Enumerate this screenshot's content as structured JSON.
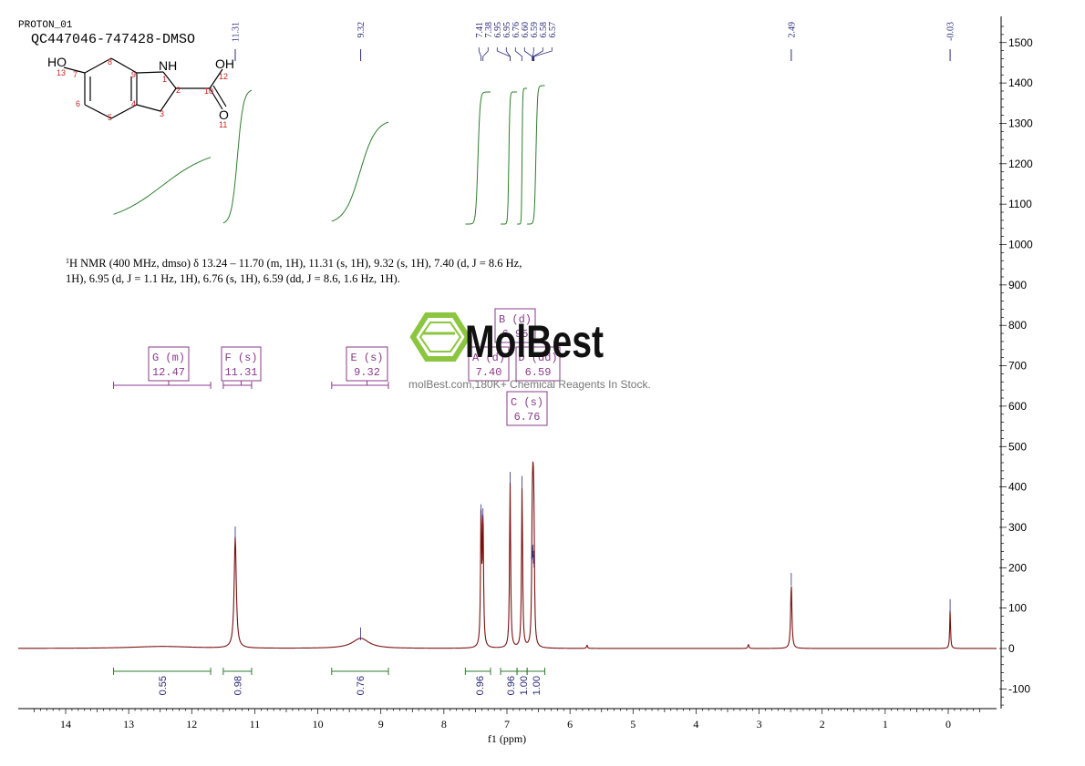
{
  "header": {
    "experiment": "PROTON_01",
    "sample": "QC447046-747428-DMSO"
  },
  "watermark": {
    "brand": "MolBest",
    "tagline": "molBest.com,180K+ Chemical Reagents In Stock."
  },
  "description": {
    "line1_sup": "1",
    "line1": "H NMR (400 MHz, dmso) δ 13.24 – 11.70 (m, 1H), 11.31 (s, 1H), 9.32 (s, 1H), 7.40 (d, J = 8.6 Hz,",
    "line2": "1H), 6.95 (d, J = 1.1 Hz, 1H), 6.76 (s, 1H), 6.59 (dd, J = 8.6, 1.6 Hz, 1H)."
  },
  "molecule": {
    "atoms": [
      "HO",
      "NH",
      "OH",
      "O"
    ],
    "numbers": [
      "13",
      "7",
      "8",
      "9",
      "1",
      "2",
      "10",
      "12",
      "6",
      "5",
      "4",
      "3",
      "11"
    ]
  },
  "colors": {
    "spectrum": "#7b1010",
    "integral": "#2e7d2e",
    "multiplet": "#8a3a8a",
    "peak_label": "#2a2a7a",
    "axis": "#000000",
    "atom_number": "#cc2222"
  },
  "chart_data": {
    "type": "line",
    "xlabel": "f1 (ppm)",
    "x_ticks": [
      "14",
      "13",
      "12",
      "11",
      "10",
      "9",
      "8",
      "7",
      "6",
      "5",
      "4",
      "3",
      "2",
      "1",
      "0"
    ],
    "y_ticks": [
      "1500",
      "1400",
      "1300",
      "1200",
      "1100",
      "1000",
      "900",
      "800",
      "700",
      "600",
      "500",
      "400",
      "300",
      "200",
      "100",
      "0",
      "-100"
    ],
    "xlim": [
      14.8,
      -0.75
    ],
    "ylim": [
      -145,
      1560
    ],
    "x_reversed": true,
    "peaks": [
      {
        "ppm": 12.47,
        "height": 5,
        "width": 0.6
      },
      {
        "ppm": 11.31,
        "height": 275,
        "width": 0.02
      },
      {
        "ppm": 9.32,
        "height": 25,
        "width": 0.16
      },
      {
        "ppm": 7.41,
        "height": 330,
        "width": 0.01
      },
      {
        "ppm": 7.38,
        "height": 320,
        "width": 0.01
      },
      {
        "ppm": 6.95,
        "height": 410,
        "width": 0.01
      },
      {
        "ppm": 6.76,
        "height": 400,
        "width": 0.01
      },
      {
        "ppm": 6.6,
        "height": 225,
        "width": 0.009
      },
      {
        "ppm": 6.59,
        "height": 230,
        "width": 0.009
      },
      {
        "ppm": 6.58,
        "height": 215,
        "width": 0.009
      },
      {
        "ppm": 6.57,
        "height": 205,
        "width": 0.009
      },
      {
        "ppm": 5.73,
        "height": 8,
        "width": 0.01
      },
      {
        "ppm": 3.17,
        "height": 10,
        "width": 0.01
      },
      {
        "ppm": 2.49,
        "height": 160,
        "width": 0.012
      },
      {
        "ppm": -0.03,
        "height": 95,
        "width": 0.008
      }
    ],
    "peak_labels": [
      {
        "ppm": 11.31,
        "text": "11.31"
      },
      {
        "ppm": 9.32,
        "text": "9.32"
      },
      {
        "ppm": 7.41,
        "text": "7.41"
      },
      {
        "ppm": 7.38,
        "text": "7.38"
      },
      {
        "ppm": 6.95,
        "text": "6.95"
      },
      {
        "ppm": 6.95,
        "text": "6.95"
      },
      {
        "ppm": 6.76,
        "text": "6.76"
      },
      {
        "ppm": 6.6,
        "text": "6.60"
      },
      {
        "ppm": 6.59,
        "text": "6.59"
      },
      {
        "ppm": 6.58,
        "text": "6.58"
      },
      {
        "ppm": 6.57,
        "text": "6.57"
      },
      {
        "ppm": 2.49,
        "text": "2.49"
      },
      {
        "ppm": -0.03,
        "text": "-0.03"
      }
    ],
    "integrals": [
      {
        "from": 13.24,
        "to": 11.7,
        "value": "0.55"
      },
      {
        "from": 11.5,
        "to": 11.05,
        "value": "0.98"
      },
      {
        "from": 9.78,
        "to": 8.88,
        "value": "0.76"
      },
      {
        "from": 7.66,
        "to": 7.26,
        "value": "0.96"
      },
      {
        "from": 7.1,
        "to": 6.84,
        "value": "0.96"
      },
      {
        "from": 6.84,
        "to": 6.68,
        "value": "1.00"
      },
      {
        "from": 6.68,
        "to": 6.4,
        "value": "1.00"
      }
    ],
    "multiplets": [
      {
        "label": "G (m)",
        "value": "12.47",
        "from": 13.24,
        "to": 11.7
      },
      {
        "label": "F (s)",
        "value": "11.31",
        "from": 11.5,
        "to": 11.05
      },
      {
        "label": "E (s)",
        "value": "9.32",
        "from": 9.78,
        "to": 8.88
      },
      {
        "label": "A (d)",
        "value": "7.40"
      },
      {
        "label": "B (d)",
        "value": "6.95"
      },
      {
        "label": "D (dd)",
        "value": "6.59"
      },
      {
        "label": "C (s)",
        "value": "6.76"
      }
    ]
  }
}
